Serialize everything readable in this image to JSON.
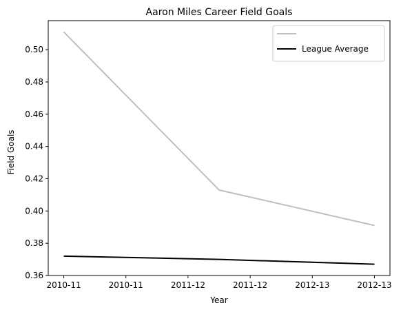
{
  "chart_data": {
    "type": "line",
    "title": "Aaron Miles  Career Field Goals",
    "xlabel": "Year",
    "ylabel": "Field Goals",
    "x_tick_labels": [
      "2010-11",
      "2010-11",
      "2011-12",
      "2011-12",
      "2012-13",
      "2012-13"
    ],
    "x": [
      0,
      1,
      2,
      3,
      4,
      5
    ],
    "xlim": [
      -0.25,
      5.25
    ],
    "ylim": [
      0.36,
      0.518
    ],
    "y_ticks": [
      0.36,
      0.38,
      0.4,
      0.42,
      0.44,
      0.46,
      0.48,
      0.5
    ],
    "y_tick_labels": [
      "0.36",
      "0.38",
      "0.40",
      "0.42",
      "0.44",
      "0.46",
      "0.48",
      "0.50"
    ],
    "grid": false,
    "legend_position": "top-right",
    "series": [
      {
        "name": "",
        "color": "#bfbfbf",
        "x": [
          0,
          2.5,
          5
        ],
        "values": [
          0.511,
          0.413,
          0.391
        ]
      },
      {
        "name": "League Average",
        "color": "#000000",
        "x": [
          0,
          2.5,
          5
        ],
        "values": [
          0.372,
          0.37,
          0.367
        ]
      }
    ]
  }
}
